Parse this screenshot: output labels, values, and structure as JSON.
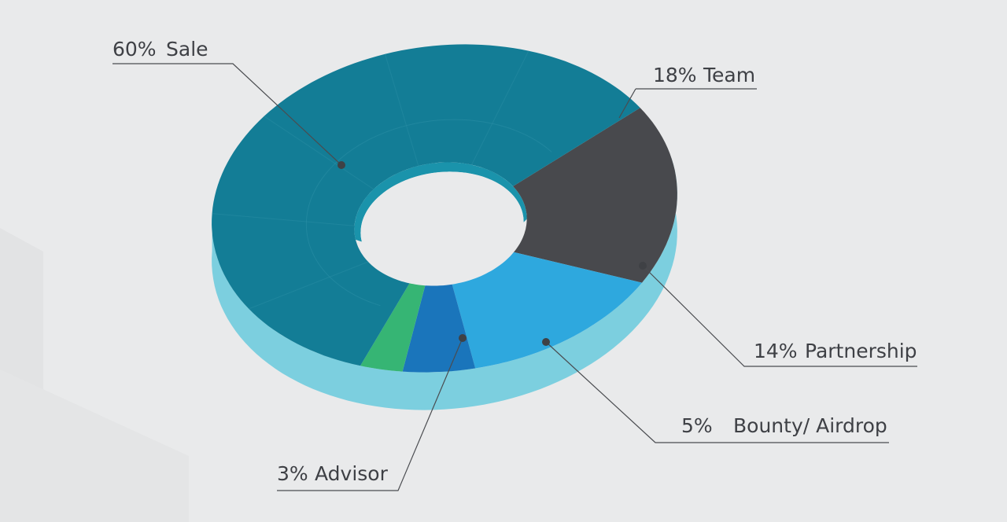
{
  "chart_data": {
    "type": "pie",
    "style": "3d-donut",
    "legend": "none",
    "slices": [
      {
        "pct_label": "60%",
        "name": "Sale",
        "value": 60,
        "color": "#137d96"
      },
      {
        "pct_label": "18%",
        "name": "Team",
        "value": 18,
        "color": "#48494d"
      },
      {
        "pct_label": "14%",
        "name": "Partnership",
        "value": 14,
        "color": "#2ea8de"
      },
      {
        "pct_label": "5%",
        "name": "Bounty/ Airdrop",
        "value": 5,
        "color": "#1a75bb"
      },
      {
        "pct_label": "3%",
        "name": "Advisor",
        "value": 3,
        "color": "#36b574"
      }
    ],
    "side_color": "#7ccfdf",
    "background": "#e9eaeb"
  }
}
